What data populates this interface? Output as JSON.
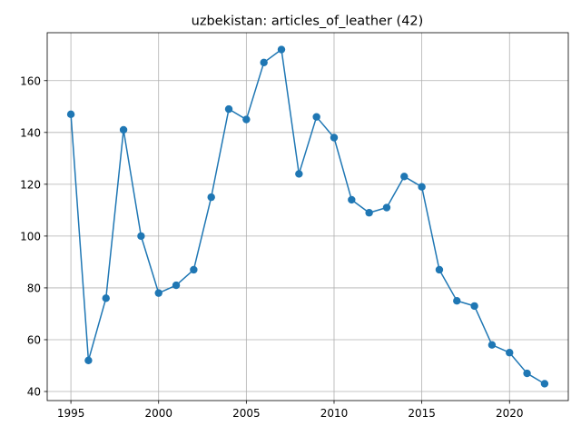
{
  "chart_data": {
    "type": "line",
    "title": "uzbekistan: articles_of_leather (42)",
    "xlabel": "",
    "ylabel": "",
    "xlim": [
      1993.65,
      2023.35
    ],
    "ylim": [
      36.5,
      178.5
    ],
    "x_ticks": [
      1995,
      2000,
      2005,
      2010,
      2015,
      2020
    ],
    "y_ticks": [
      40,
      60,
      80,
      100,
      120,
      140,
      160
    ],
    "grid": true,
    "line_color": "#1f77b4",
    "x": [
      1995,
      1996,
      1997,
      1998,
      1999,
      2000,
      2001,
      2002,
      2003,
      2004,
      2005,
      2006,
      2007,
      2008,
      2009,
      2010,
      2011,
      2012,
      2013,
      2014,
      2015,
      2016,
      2017,
      2018,
      2019,
      2020,
      2021,
      2022
    ],
    "values": [
      147,
      52,
      76,
      141,
      100,
      78,
      81,
      87,
      115,
      149,
      145,
      167,
      172,
      124,
      146,
      138,
      114,
      109,
      111,
      123,
      119,
      87,
      75,
      73,
      58,
      55,
      47,
      43
    ]
  }
}
